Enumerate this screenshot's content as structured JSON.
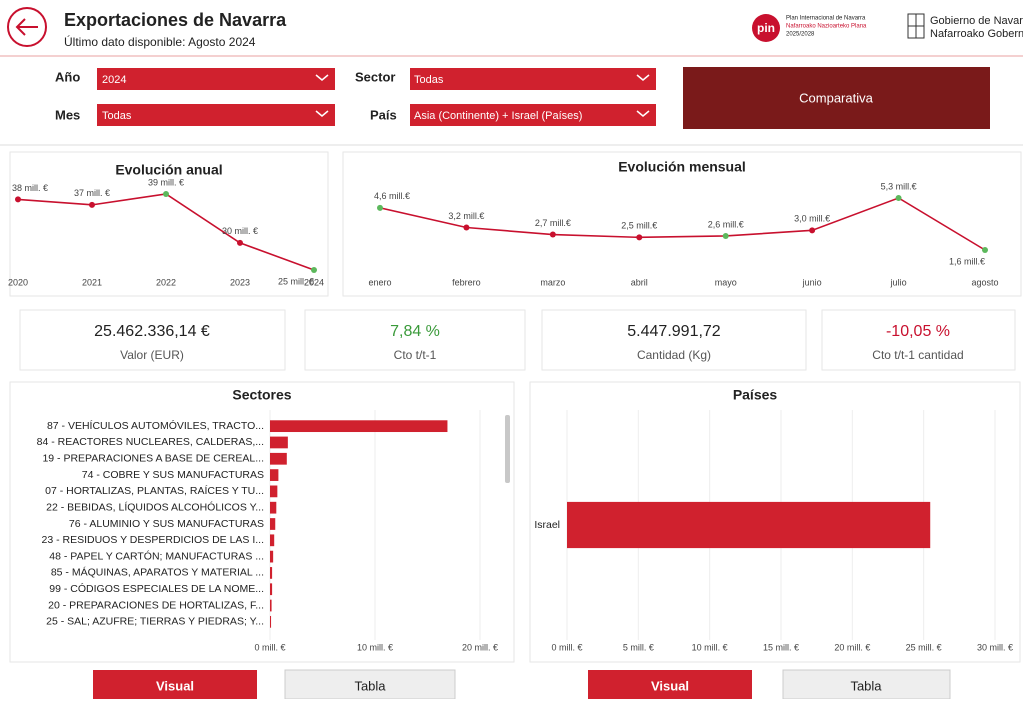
{
  "header": {
    "title": "Exportaciones de Navarra",
    "subtitle": "Último dato disponible: Agosto 2024",
    "logo_pin": "pin",
    "logo_pin_lines": [
      "Plan Internacional de Navarra",
      "Nafarroako Nazioarteko Plana",
      "2025/2028"
    ],
    "logo_gov_lines": [
      "Gobierno de Navarra",
      "Nafarroako Gobernua"
    ]
  },
  "filters": {
    "year_label": "Año",
    "year": "2024",
    "month_label": "Mes",
    "month": "Todas",
    "sector_label": "Sector",
    "sector": "Todas",
    "country_label": "País",
    "country": "Asia (Continente) + Israel (Países)",
    "compare_button": "Comparativa"
  },
  "kpis": [
    {
      "value": "25.462.336,14 €",
      "label": "Valor (EUR)"
    },
    {
      "value": "7,84 %",
      "label": "Cto t/t-1",
      "color": "#3a9a3a"
    },
    {
      "value": "5.447.991,72",
      "label": "Cantidad (Kg)"
    },
    {
      "value": "-10,05 %",
      "label": "Cto t/t-1 cantidad",
      "color": "#c8102e"
    }
  ],
  "chart_data": [
    {
      "type": "line",
      "title": "Evolución anual",
      "categories": [
        "2020",
        "2021",
        "2022",
        "2023",
        "2024"
      ],
      "values": [
        38,
        37,
        39,
        30,
        25
      ],
      "value_labels": [
        "38 mill. €",
        "37 mill. €",
        "39 mill. €",
        "30 mill. €",
        "25 mill. €"
      ],
      "color": "#c8102e",
      "marker_colors": [
        "#c8102e",
        "#c8102e",
        "#5cb85c",
        "#c8102e",
        "#5cb85c"
      ]
    },
    {
      "type": "line",
      "title": "Evolución mensual",
      "categories": [
        "enero",
        "febrero",
        "marzo",
        "abril",
        "mayo",
        "junio",
        "julio",
        "agosto"
      ],
      "values": [
        4.6,
        3.2,
        2.7,
        2.5,
        2.6,
        3.0,
        5.3,
        1.6
      ],
      "value_labels": [
        "4,6 mill.€",
        "3,2 mill.€",
        "2,7 mill.€",
        "2,5 mill.€",
        "2,6 mill.€",
        "3,0 mill.€",
        "5,3 mill.€",
        "1,6 mill.€"
      ],
      "color": "#c8102e",
      "marker_colors": [
        "#5cb85c",
        "#c8102e",
        "#c8102e",
        "#c8102e",
        "#5cb85c",
        "#c8102e",
        "#5cb85c",
        "#5cb85c"
      ]
    },
    {
      "type": "hbar",
      "title": "Sectores",
      "categories": [
        "87 - VEHÍCULOS AUTOMÓVILES, TRACTO...",
        "84 - REACTORES NUCLEARES, CALDERAS,...",
        "19 - PREPARACIONES A BASE DE CEREAL...",
        "74 - COBRE Y SUS MANUFACTURAS",
        "07 - HORTALIZAS, PLANTAS, RAÍCES Y TU...",
        "22 - BEBIDAS, LÍQUIDOS ALCOHÓLICOS Y...",
        "76 - ALUMINIO Y SUS MANUFACTURAS",
        "23 - RESIDUOS Y DESPERDICIOS DE LAS I...",
        "48 - PAPEL Y CARTÓN; MANUFACTURAS ...",
        "85 - MÁQUINAS, APARATOS Y MATERIAL ...",
        "99 - CÓDIGOS ESPECIALES DE LA NOME...",
        "20 - PREPARACIONES DE HORTALIZAS, F...",
        "25 - SAL; AZUFRE; TIERRAS Y PIEDRAS; Y..."
      ],
      "values": [
        16.9,
        1.7,
        1.6,
        0.8,
        0.7,
        0.6,
        0.5,
        0.4,
        0.3,
        0.2,
        0.2,
        0.15,
        0.1
      ],
      "color": "#d0212e",
      "xlim": [
        0,
        22
      ],
      "xticks": [
        {
          "value": 0,
          "label": "0 mill. €"
        },
        {
          "value": 10,
          "label": "10 mill. €"
        },
        {
          "value": 20,
          "label": "20 mill. €"
        }
      ],
      "grid": true
    },
    {
      "type": "hbar",
      "title": "Países",
      "categories": [
        "Israel"
      ],
      "values": [
        25.46
      ],
      "color": "#d0212e",
      "xlim": [
        0,
        30
      ],
      "xticks": [
        {
          "value": 0,
          "label": "0 mill. €"
        },
        {
          "value": 5,
          "label": "5 mill. €"
        },
        {
          "value": 10,
          "label": "10 mill. €"
        },
        {
          "value": 15,
          "label": "15 mill. €"
        },
        {
          "value": 20,
          "label": "20 mill. €"
        },
        {
          "value": 25,
          "label": "25 mill. €"
        },
        {
          "value": 30,
          "label": "30 mill. €"
        }
      ],
      "grid": true
    }
  ],
  "buttons": [
    "Visual",
    "Tabla",
    "Visual",
    "Tabla"
  ]
}
